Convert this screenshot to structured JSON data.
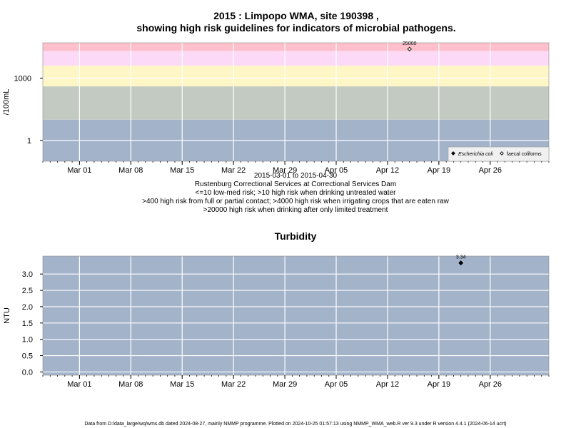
{
  "figure": {
    "footer": "Data from D:/data_large/wq/wms.db dated 2024-08-27, mainly NMMP programme. Plotted on 2024-10-25 01:57:13 using NMMP_WMA_web.R ver 9.3 under R version 4.4.1 (2024-06-14 ucrt)",
    "colors": {
      "band_low": "#a3b3ca",
      "band_gray": "#c2cac2",
      "band_yellow": "#fff6c6",
      "band_pink": "#fcdaf7",
      "band_red": "#ffc0cb",
      "panel": "#a3b3ca",
      "grid": "#ffffff",
      "ink": "#000000"
    }
  },
  "chart_data": [
    {
      "type": "scatter",
      "title_lines": [
        "2015 : Limpopo WMA, site 190398 ,",
        "showing high risk guidelines for indicators of microbial pathogens."
      ],
      "ylabel": "/100mL",
      "yscale": "log10",
      "ylim": [
        0.1,
        50000
      ],
      "yticks": [
        1,
        1000
      ],
      "ytick_labels": [
        "1",
        "1000"
      ],
      "xlim": [
        "2015-02-24",
        "2015-05-04"
      ],
      "xticks": [
        "2015-03-01",
        "2015-03-08",
        "2015-03-15",
        "2015-03-22",
        "2015-03-29",
        "2015-04-05",
        "2015-04-12",
        "2015-04-19",
        "2015-04-26"
      ],
      "xtick_labels": [
        "Mar 01",
        "Mar 08",
        "Mar 15",
        "Mar 22",
        "Mar 29",
        "Apr 05",
        "Apr 12",
        "Apr 19",
        "Apr 26"
      ],
      "grid": true,
      "guideline_bands": [
        {
          "from": 0.1,
          "to": 10,
          "color": "band_low"
        },
        {
          "from": 10,
          "to": 400,
          "color": "band_gray"
        },
        {
          "from": 400,
          "to": 4000,
          "color": "band_yellow"
        },
        {
          "from": 4000,
          "to": 20000,
          "color": "band_pink"
        },
        {
          "from": 20000,
          "to": 50000,
          "color": "band_red"
        }
      ],
      "series": [
        {
          "name": "Escherichia coli",
          "marker": "filled-diamond",
          "points": []
        },
        {
          "name": "faecal coliforms",
          "marker": "open-diamond",
          "points": [
            {
              "x": "2015-04-15",
              "y": 25000,
              "label": "25000"
            }
          ]
        }
      ],
      "legend": {
        "position": "bottom-right"
      },
      "caption_lines": [
        "2015-03-01 to 2015-04-30",
        "Rustenburg Correctional Services at Correctional Services Dam",
        "<=10 low-med risk; >10 high risk when drinking untreated water",
        ">400 high risk from full or partial contact; >4000 high risk when irrigating crops that are eaten raw",
        ">20000 high risk when drinking after only limited treatment"
      ]
    },
    {
      "type": "scatter",
      "title": "Turbidity",
      "ylabel": "NTU",
      "ylim": [
        -0.1,
        3.55
      ],
      "yticks": [
        0,
        0.5,
        1,
        1.5,
        2,
        2.5,
        3
      ],
      "ytick_labels": [
        "0.0",
        "0.5",
        "1.0",
        "1.5",
        "2.0",
        "2.5",
        "3.0"
      ],
      "xlim": [
        "2015-02-24",
        "2015-05-04"
      ],
      "xticks": [
        "2015-03-01",
        "2015-03-08",
        "2015-03-15",
        "2015-03-22",
        "2015-03-29",
        "2015-04-05",
        "2015-04-12",
        "2015-04-19",
        "2015-04-26"
      ],
      "xtick_labels": [
        "Mar 01",
        "Mar 08",
        "Mar 15",
        "Mar 22",
        "Mar 29",
        "Apr 05",
        "Apr 12",
        "Apr 19",
        "Apr 26"
      ],
      "grid": true,
      "series": [
        {
          "marker": "filled-diamond",
          "points": [
            {
              "x": "2015-04-22",
              "y": 3.34,
              "label": "3.34"
            }
          ]
        }
      ]
    }
  ]
}
